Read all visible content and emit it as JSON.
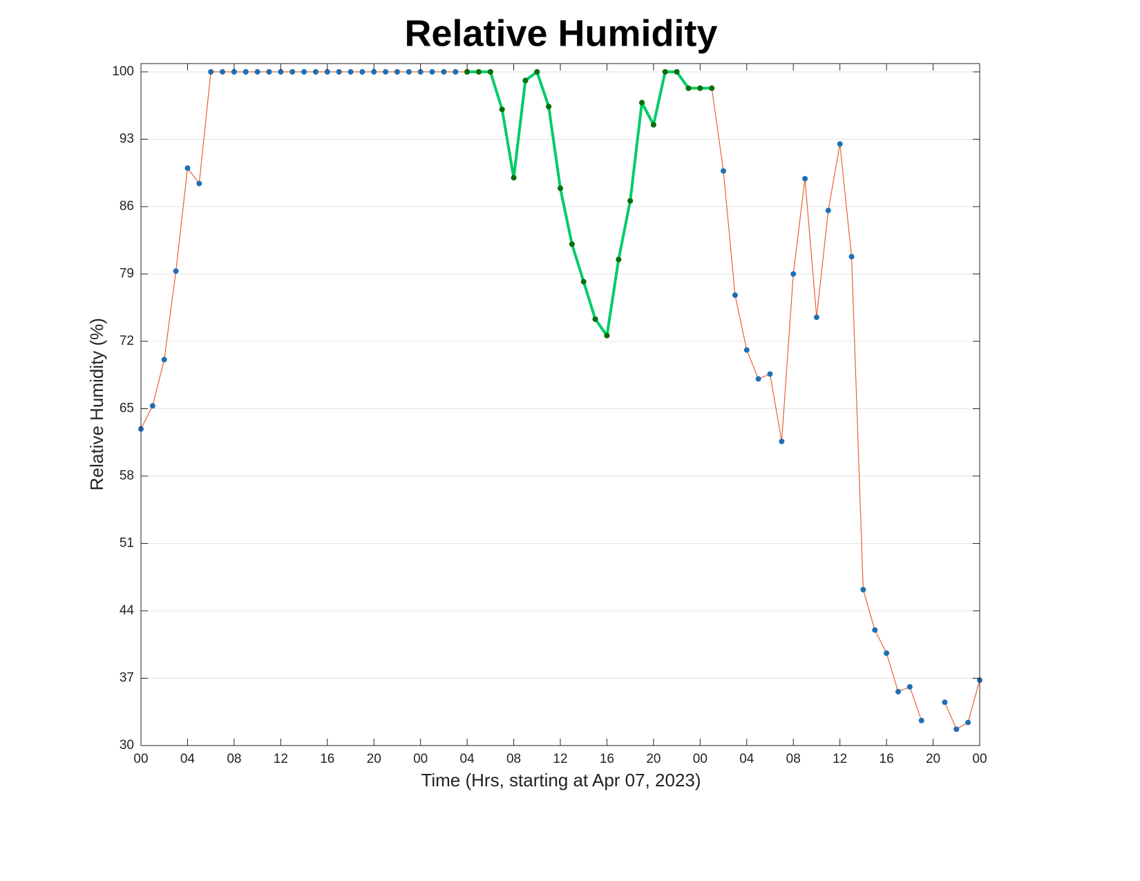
{
  "chart_data": {
    "type": "line",
    "title": "Relative Humidity",
    "x_label": "Time (Hrs, starting at Apr 07, 2023)",
    "y_label": "Relative Humidity (%)",
    "x": [
      0,
      1,
      2,
      3,
      4,
      5,
      6,
      7,
      8,
      9,
      10,
      11,
      12,
      13,
      14,
      15,
      16,
      17,
      18,
      19,
      20,
      21,
      22,
      23,
      24,
      25,
      26,
      27,
      28,
      29,
      30,
      31,
      32,
      33,
      34,
      35,
      36,
      37,
      38,
      39,
      40,
      41,
      42,
      43,
      44,
      45,
      46,
      47,
      48,
      49,
      50,
      51,
      52,
      53,
      54,
      55,
      56,
      57,
      58,
      59,
      60,
      61,
      62,
      63,
      64,
      65,
      66,
      67,
      68,
      69,
      70,
      71,
      72
    ],
    "series": [
      {
        "color": "#e8602c",
        "marker_color": "#1f6fb5",
        "line_width": 1.2,
        "values": [
          62.9,
          65.3,
          70.1,
          79.3,
          90.0,
          88.4,
          100,
          100,
          100,
          100,
          100,
          100,
          100,
          100,
          100,
          100,
          100,
          100,
          100,
          100,
          100,
          100,
          100,
          100,
          100,
          100,
          100,
          100,
          100,
          100,
          100,
          96.1,
          89.0,
          99.1,
          100,
          96.4,
          87.9,
          82.1,
          78.2,
          74.3,
          72.6,
          80.5,
          86.6,
          96.8,
          94.5,
          100,
          100,
          98.3,
          98.3,
          98.3,
          89.7,
          76.8,
          71.1,
          68.1,
          68.6,
          61.6,
          79.0,
          88.9,
          74.5,
          85.6,
          92.5,
          80.8,
          46.2,
          42.0,
          39.6,
          35.6,
          36.1,
          32.6,
          null,
          34.5,
          31.7,
          32.4,
          36.8
        ]
      },
      {
        "color": "#00cc66",
        "marker_color": "#0a6e0a",
        "line_width": 4,
        "values": [
          null,
          null,
          null,
          null,
          null,
          null,
          null,
          null,
          null,
          null,
          null,
          null,
          null,
          null,
          null,
          null,
          null,
          null,
          null,
          null,
          null,
          null,
          null,
          null,
          null,
          null,
          null,
          null,
          100,
          100,
          100,
          96.1,
          89.0,
          99.1,
          100,
          96.4,
          87.9,
          82.1,
          78.2,
          74.3,
          72.6,
          80.5,
          86.6,
          96.8,
          94.5,
          100,
          100,
          98.3,
          98.3,
          98.3,
          null,
          null,
          null,
          null,
          null,
          null,
          null,
          null,
          null,
          null,
          null,
          null,
          null,
          null,
          null,
          null,
          null,
          null,
          null,
          null,
          null,
          null,
          null
        ]
      }
    ],
    "xlim": [
      0,
      72
    ],
    "xticks": [
      {
        "value": 0,
        "label": "00"
      },
      {
        "value": 4,
        "label": "04"
      },
      {
        "value": 8,
        "label": "08"
      },
      {
        "value": 12,
        "label": "12"
      },
      {
        "value": 16,
        "label": "16"
      },
      {
        "value": 20,
        "label": "20"
      },
      {
        "value": 24,
        "label": "00"
      },
      {
        "value": 28,
        "label": "04"
      },
      {
        "value": 32,
        "label": "08"
      },
      {
        "value": 36,
        "label": "12"
      },
      {
        "value": 40,
        "label": "16"
      },
      {
        "value": 44,
        "label": "20"
      },
      {
        "value": 48,
        "label": "00"
      },
      {
        "value": 52,
        "label": "04"
      },
      {
        "value": 56,
        "label": "08"
      },
      {
        "value": 60,
        "label": "12"
      },
      {
        "value": 64,
        "label": "16"
      },
      {
        "value": 68,
        "label": "20"
      },
      {
        "value": 72,
        "label": "00"
      }
    ],
    "ylim": [
      30,
      100
    ],
    "yticks": [
      30,
      37,
      44,
      51,
      58,
      65,
      72,
      79,
      86,
      93,
      100
    ],
    "grid": true
  }
}
